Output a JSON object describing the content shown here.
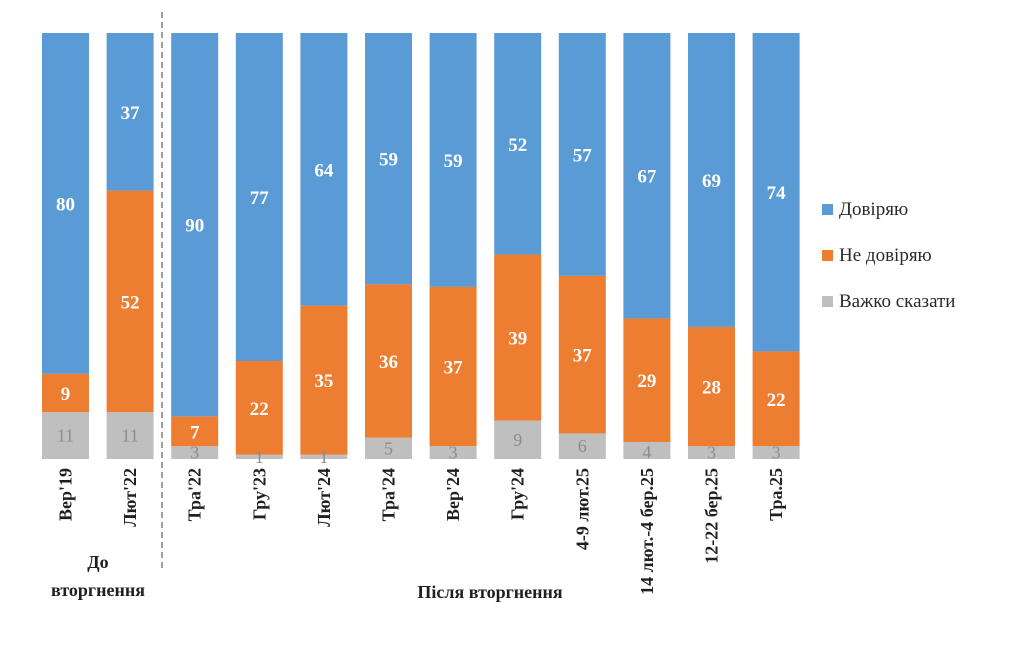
{
  "chart_data": {
    "type": "bar",
    "stacked": true,
    "percent_stacked": true,
    "categories": [
      "Вер'19",
      "Лют'22",
      "Тра'22",
      "Гру'23",
      "Лют'24",
      "Тра'24",
      "Вер'24",
      "Гру'24",
      "4-9 лют.25",
      "14 лют.-4 бер.25",
      "12-22 бер.25",
      "Тра.25"
    ],
    "series": [
      {
        "name": "Довіряю",
        "color": "#5b9bd5",
        "values": [
          80,
          37,
          90,
          77,
          64,
          59,
          59,
          52,
          57,
          67,
          69,
          74
        ]
      },
      {
        "name": "Не довіряю",
        "color": "#ed7d31",
        "values": [
          9,
          52,
          7,
          22,
          35,
          36,
          37,
          39,
          37,
          29,
          28,
          22
        ]
      },
      {
        "name": "Важко сказати",
        "color": "#bfbfbf",
        "values": [
          11,
          11,
          3,
          1,
          1,
          5,
          3,
          9,
          6,
          4,
          3,
          3
        ]
      }
    ],
    "groups": [
      {
        "label_lines": [
          "До",
          "вторгнення"
        ],
        "categories": [
          "Вер'19",
          "Лют'22"
        ]
      },
      {
        "label_lines": [
          "Після вторгнення"
        ],
        "categories": [
          "Тра'22",
          "Гру'23",
          "Лют'24",
          "Тра'24",
          "Вер'24",
          "Гру'24",
          "4-9 лют.25",
          "14 лют.-4 бер.25",
          "12-22 бер.25",
          "Тра.25"
        ]
      }
    ],
    "legend_position": "right",
    "grid": false,
    "title": "",
    "xlabel": "",
    "ylabel": ""
  }
}
